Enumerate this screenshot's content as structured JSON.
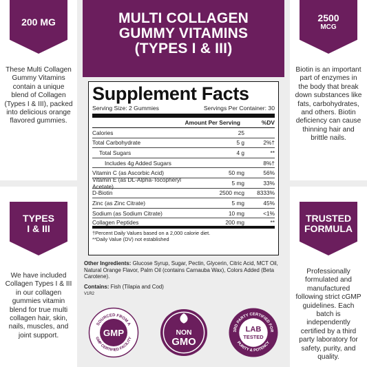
{
  "header": {
    "line1": "MULTI COLLAGEN",
    "line2": "GUMMY VITAMINS",
    "line3": "(TYPES I & III)"
  },
  "left_top": {
    "badge": "200 MG",
    "text": "These Multi Collagen Gummy Vitamins contain a unique blend of Collagen (Types I & III), packed into delicious orange flavored gummies."
  },
  "right_top": {
    "badge_big": "2500",
    "badge_small": "MCG",
    "text": "Biotin is an important part of enzymes in the body that break down substances like fats, carbohydrates, and others. Biotin deficiency can cause thinning hair and brittle nails."
  },
  "left_bottom": {
    "badge_line1": "TYPES",
    "badge_line2": "I & III",
    "text": "We have included Collagen Types I & III in our collagen gummies vitamin blend for true multi collagen hair, skin, nails, muscles, and joint support."
  },
  "right_bottom": {
    "badge_line1": "TRUSTED",
    "badge_line2": "FORMULA",
    "text": "Professionally formulated and manufactured following strict cGMP guidelines. Each batch is independently certified by a third party laboratory for safety, purity, and quality."
  },
  "facts": {
    "title": "Supplement Facts",
    "serving_size": "Serving Size: 2 Gummies",
    "servings_per_container": "Servings Per Container: 30",
    "col_amount": "Amount Per Serving",
    "col_dv": "%DV",
    "rows": [
      {
        "name": "Calories",
        "amount": "25",
        "dv": ""
      },
      {
        "name": "Total Carbohydrate",
        "amount": "5 g",
        "dv": "2%†"
      },
      {
        "name": "Total Sugars",
        "amount": "4 g",
        "dv": "**"
      },
      {
        "name": "Includes 4g Added Sugars",
        "amount": "",
        "dv": "8%†"
      },
      {
        "name": "Vitamin C (as Ascorbic Acid)",
        "amount": "50 mg",
        "dv": "56%"
      },
      {
        "name": "Vitamin E (as DL-Alpha-Tocopheryl Acetate)",
        "amount": "5 mg",
        "dv": "33%"
      },
      {
        "name": "D-Biotin",
        "amount": "2500 mcg",
        "dv": "8333%"
      },
      {
        "name": "Zinc (as Zinc Citrate)",
        "amount": "5 mg",
        "dv": "45%"
      },
      {
        "name": "Sodium (as Sodium Citrate)",
        "amount": "10 mg",
        "dv": "<1%"
      },
      {
        "name": "Collagen Peptides",
        "amount": "200 mg",
        "dv": "**"
      }
    ],
    "footnote1": "†Percent Daily Values based on a 2,000 calorie diet.",
    "footnote2": "**Daily Value (DV) not established"
  },
  "other": {
    "label": "Other Ingredients:",
    "text": " Glucose Syrup, Sugar, Pectin, Glycerin, Citric Acid, MCT Oil, Natural Orange Flavor, Palm Oil (contains Carnauba Wax), Colors Added (Beta Carotene).",
    "contains_label": "Contains:",
    "contains_text": " Fish (Tilapia and Cod)",
    "code": "V1R2"
  },
  "badges": {
    "gmp": {
      "main": "GMP",
      "ring_top": "SOURCED FROM A",
      "ring_bottom": "GMP CERTIFIED FACILITY"
    },
    "nongmo": {
      "line1": "NON",
      "line2": "GMO"
    },
    "lab": {
      "line1": "LAB",
      "line2": "TESTED",
      "ring_top": "3RD PARTY CERTIFIED FOR",
      "ring_bottom": "PURITY & POTENCY"
    }
  },
  "colors": {
    "brand": "#6b1e5d",
    "badge_fill": "#6b1e5d"
  }
}
